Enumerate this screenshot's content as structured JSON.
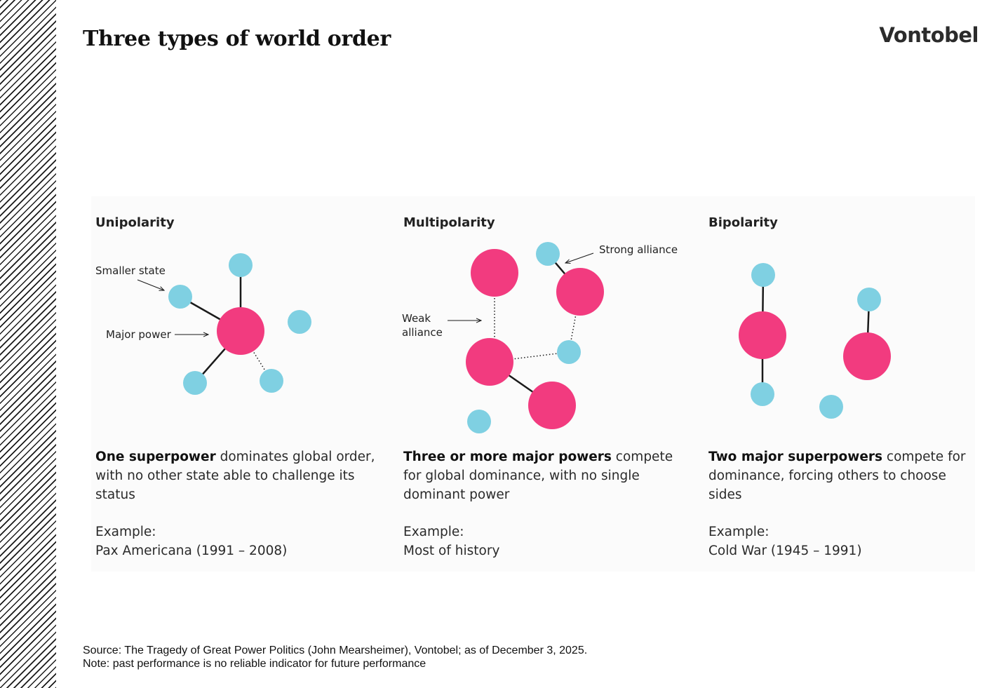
{
  "title": "Three types of world order",
  "logo": "Vontobel",
  "colors": {
    "major_power": "#f23b7f",
    "smaller_state": "#7fd0e2",
    "line": "#1a1a1a",
    "panel": "#fbfbfb"
  },
  "columns": [
    {
      "heading": "Unipolarity",
      "desc_bold": "One superpower",
      "desc_rest": " dominates global order, with no other state able to challenge its status",
      "example_label": "Example:",
      "example_value": "Pax Americana (1991 – 2008)",
      "annotations": {
        "smaller_state": "Smaller state",
        "major_power": "Major power"
      }
    },
    {
      "heading": "Multipolarity",
      "desc_bold": "Three or more major powers",
      "desc_rest": " compete for global dominance, with no single dominant power",
      "example_label": "Example:",
      "example_value": "Most of history",
      "annotations": {
        "strong_alliance": "Strong alliance",
        "weak_alliance_line1": "Weak",
        "weak_alliance_line2": "alliance"
      }
    },
    {
      "heading": "Bipolarity",
      "desc_bold": "Two major superpowers",
      "desc_rest": " compete for dominance, forcing others to choose sides",
      "example_label": "Example:",
      "example_value": "Cold War (1945 – 1991)"
    }
  ],
  "source_lines": [
    "Source: The Tragedy of Great Power Politics (John Mearsheimer), Vontobel; as of December 3, 2025.",
    "Note: past performance is no reliable indicator for future performance"
  ]
}
